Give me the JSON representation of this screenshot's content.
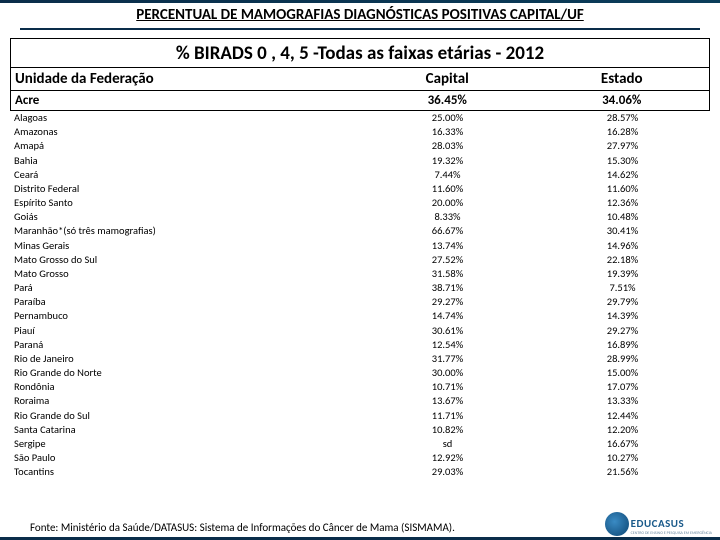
{
  "main_title": "PERCENTUAL DE MAMOGRAFIAS DIAGNÓSTICAS POSITIVAS CAPITAL/UF",
  "sub_title": "% BIRADS 0 , 4, 5 -Todas as faixas etárias - 2012",
  "header": {
    "col1": "Unidade da Federação",
    "col2": "Capital",
    "col3": "Estado"
  },
  "first_row": {
    "unit": "Acre",
    "capital": "36.45%",
    "estado": "34.06%"
  },
  "rows": [
    {
      "unit": "Alagoas",
      "capital": "25.00%",
      "estado": "28.57%"
    },
    {
      "unit": "Amazonas",
      "capital": "16.33%",
      "estado": "16.28%"
    },
    {
      "unit": "Amapá",
      "capital": "28.03%",
      "estado": "27.97%"
    },
    {
      "unit": "Bahia",
      "capital": "19.32%",
      "estado": "15.30%"
    },
    {
      "unit": "Ceará",
      "capital": "7.44%",
      "estado": "14.62%"
    },
    {
      "unit": "Distrito Federal",
      "capital": "11.60%",
      "estado": "11.60%"
    },
    {
      "unit": "Espírito Santo",
      "capital": "20.00%",
      "estado": "12.36%"
    },
    {
      "unit": "Goiás",
      "capital": "8.33%",
      "estado": "10.48%"
    },
    {
      "unit": "Maranhão*(só três mamografias)",
      "capital": "66.67%",
      "estado": "30.41%"
    },
    {
      "unit": "Minas Gerais",
      "capital": "13.74%",
      "estado": "14.96%"
    },
    {
      "unit": "Mato Grosso do Sul",
      "capital": "27.52%",
      "estado": "22.18%"
    },
    {
      "unit": "Mato Grosso",
      "capital": "31.58%",
      "estado": "19.39%"
    },
    {
      "unit": "Pará",
      "capital": "38.71%",
      "estado": "7.51%"
    },
    {
      "unit": "Paraíba",
      "capital": "29.27%",
      "estado": "29.79%"
    },
    {
      "unit": "Pernambuco",
      "capital": "14.74%",
      "estado": "14.39%"
    },
    {
      "unit": "Piauí",
      "capital": "30.61%",
      "estado": "29.27%"
    },
    {
      "unit": "Paraná",
      "capital": "12.54%",
      "estado": "16.89%"
    },
    {
      "unit": "Rio de Janeiro",
      "capital": "31.77%",
      "estado": "28.99%"
    },
    {
      "unit": "Rio Grande do Norte",
      "capital": "30.00%",
      "estado": "15.00%"
    },
    {
      "unit": "Rondônia",
      "capital": "10.71%",
      "estado": "17.07%"
    },
    {
      "unit": "Roraima",
      "capital": "13.67%",
      "estado": "13.33%"
    },
    {
      "unit": "Rio Grande do Sul",
      "capital": "11.71%",
      "estado": "12.44%"
    },
    {
      "unit": "Santa Catarina",
      "capital": "10.82%",
      "estado": "12.20%"
    },
    {
      "unit": "Sergipe",
      "capital": "sd",
      "estado": "16.67%"
    },
    {
      "unit": "São Paulo",
      "capital": "12.92%",
      "estado": "10.27%"
    },
    {
      "unit": "Tocantins",
      "capital": "29.03%",
      "estado": "21.56%"
    }
  ],
  "source_note": "Fonte: Ministério da Saúde/DATASUS: Sistema de Informações do Câncer de Mama (SISMAMA).",
  "logo": {
    "text": "EDUCASUS",
    "sub": "CENTRO DE ENSINO E PESQUISA EM EMERGÊNCIA"
  },
  "colors": {
    "border_dark": "#0a2d4a",
    "logo_blue": "#1a5a8a"
  }
}
